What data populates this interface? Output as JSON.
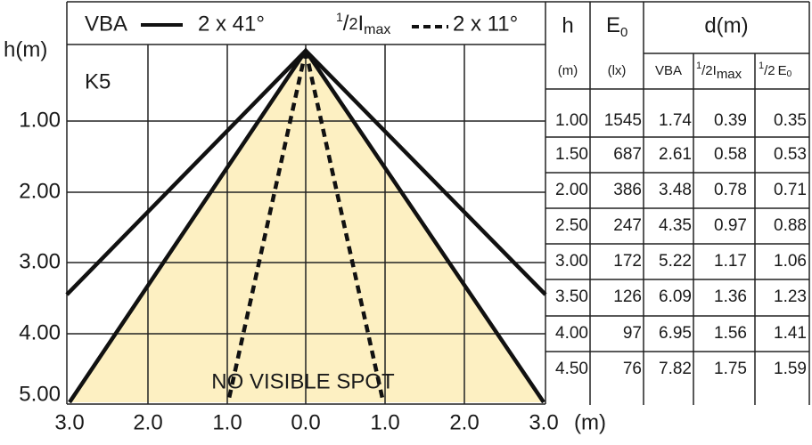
{
  "legend": {
    "vba": "VBA",
    "vba_angle": "2 x 41°",
    "half_num": "1",
    "half_den": "2",
    "imax_i": "I",
    "imax_sub": "max",
    "imax_angle": "2 x 11°"
  },
  "diagram": {
    "y_title": "h(m)",
    "tag": "K5",
    "note": "NO VISIBLE SPOT",
    "y_labels": [
      "1.00",
      "2.00",
      "3.00",
      "4.00",
      "5.00"
    ],
    "x_labels": [
      "3.0",
      "2.0",
      "1.0",
      "0.0",
      "1.0",
      "2.0",
      "3.0"
    ],
    "x_unit": "(m)"
  },
  "table": {
    "headers": {
      "h": "h",
      "e": "E",
      "e_sub": "0",
      "d": "d(m)"
    },
    "units": {
      "h": "(m)",
      "e": "(lx)",
      "vba": "VBA",
      "half_num": "1",
      "half_den": "2",
      "imax": "I",
      "imax_sub": "max",
      "e0": "E",
      "e0_sub": "0"
    },
    "rows": [
      [
        "1.00",
        "1545",
        "1.74",
        "0.39",
        "0.35"
      ],
      [
        "1.50",
        "687",
        "2.61",
        "0.58",
        "0.53"
      ],
      [
        "2.00",
        "386",
        "3.48",
        "0.78",
        "0.71"
      ],
      [
        "2.50",
        "247",
        "4.35",
        "0.97",
        "0.88"
      ],
      [
        "3.00",
        "172",
        "5.22",
        "1.17",
        "1.06"
      ],
      [
        "3.50",
        "126",
        "6.09",
        "1.36",
        "1.23"
      ],
      [
        "4.00",
        "97",
        "6.95",
        "1.56",
        "1.41"
      ],
      [
        "4.50",
        "76",
        "7.82",
        "1.75",
        "1.59"
      ]
    ]
  }
}
